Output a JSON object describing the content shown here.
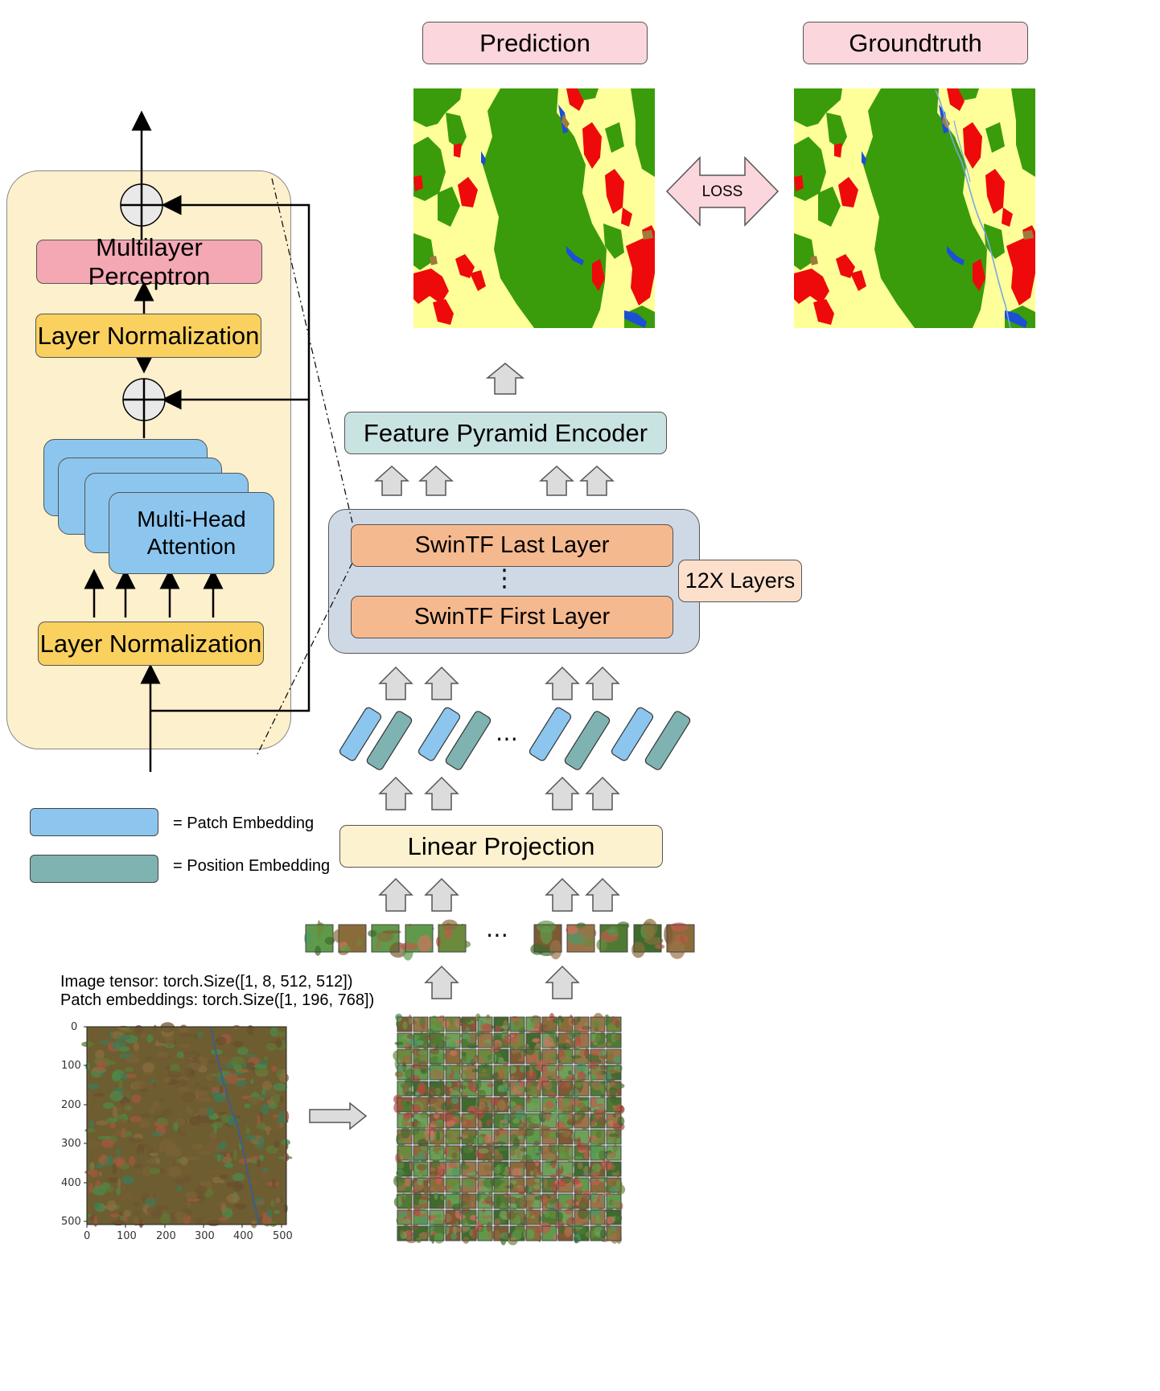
{
  "header": {
    "prediction_label": "Prediction",
    "groundtruth_label": "Groundtruth",
    "loss_label": "LOSS"
  },
  "transformer_block": {
    "mlp_label": "Multilayer Perceptron",
    "layer_norm_top": "Layer Normalization",
    "layer_norm_bottom": "Layer Normalization",
    "attention_line1": "Multi-Head",
    "attention_line2": "Attention"
  },
  "pipeline": {
    "feature_pyramid": "Feature Pyramid Encoder",
    "swin_last": "SwinTF Last Layer",
    "swin_first": "SwinTF First Layer",
    "vertical_dots": "⋮",
    "layers_count": "12X Layers",
    "linear_projection": "Linear Projection",
    "ellipsis": "⋯"
  },
  "legend": {
    "patch_embedding": "= Patch Embedding",
    "position_embedding": "= Position Embedding"
  },
  "tensor_info": {
    "line1": "Image tensor: torch.Size([1, 8, 512, 512])",
    "line2": "Patch embeddings: torch.Size([1, 196, 768])"
  },
  "satellite_plot": {
    "y_ticks": [
      "0",
      "100",
      "200",
      "300",
      "400",
      "500"
    ],
    "x_ticks": [
      "0",
      "100",
      "200",
      "300",
      "400",
      "500"
    ]
  },
  "colors": {
    "forest": "#3a9c0b",
    "cropland": "#ffff99",
    "urban": "#ee0a0a",
    "water": "#1b4fd6",
    "bare": "#a07a3a",
    "patch_embedding": "#8cc6ee",
    "position_embedding": "#7fb3b1"
  }
}
